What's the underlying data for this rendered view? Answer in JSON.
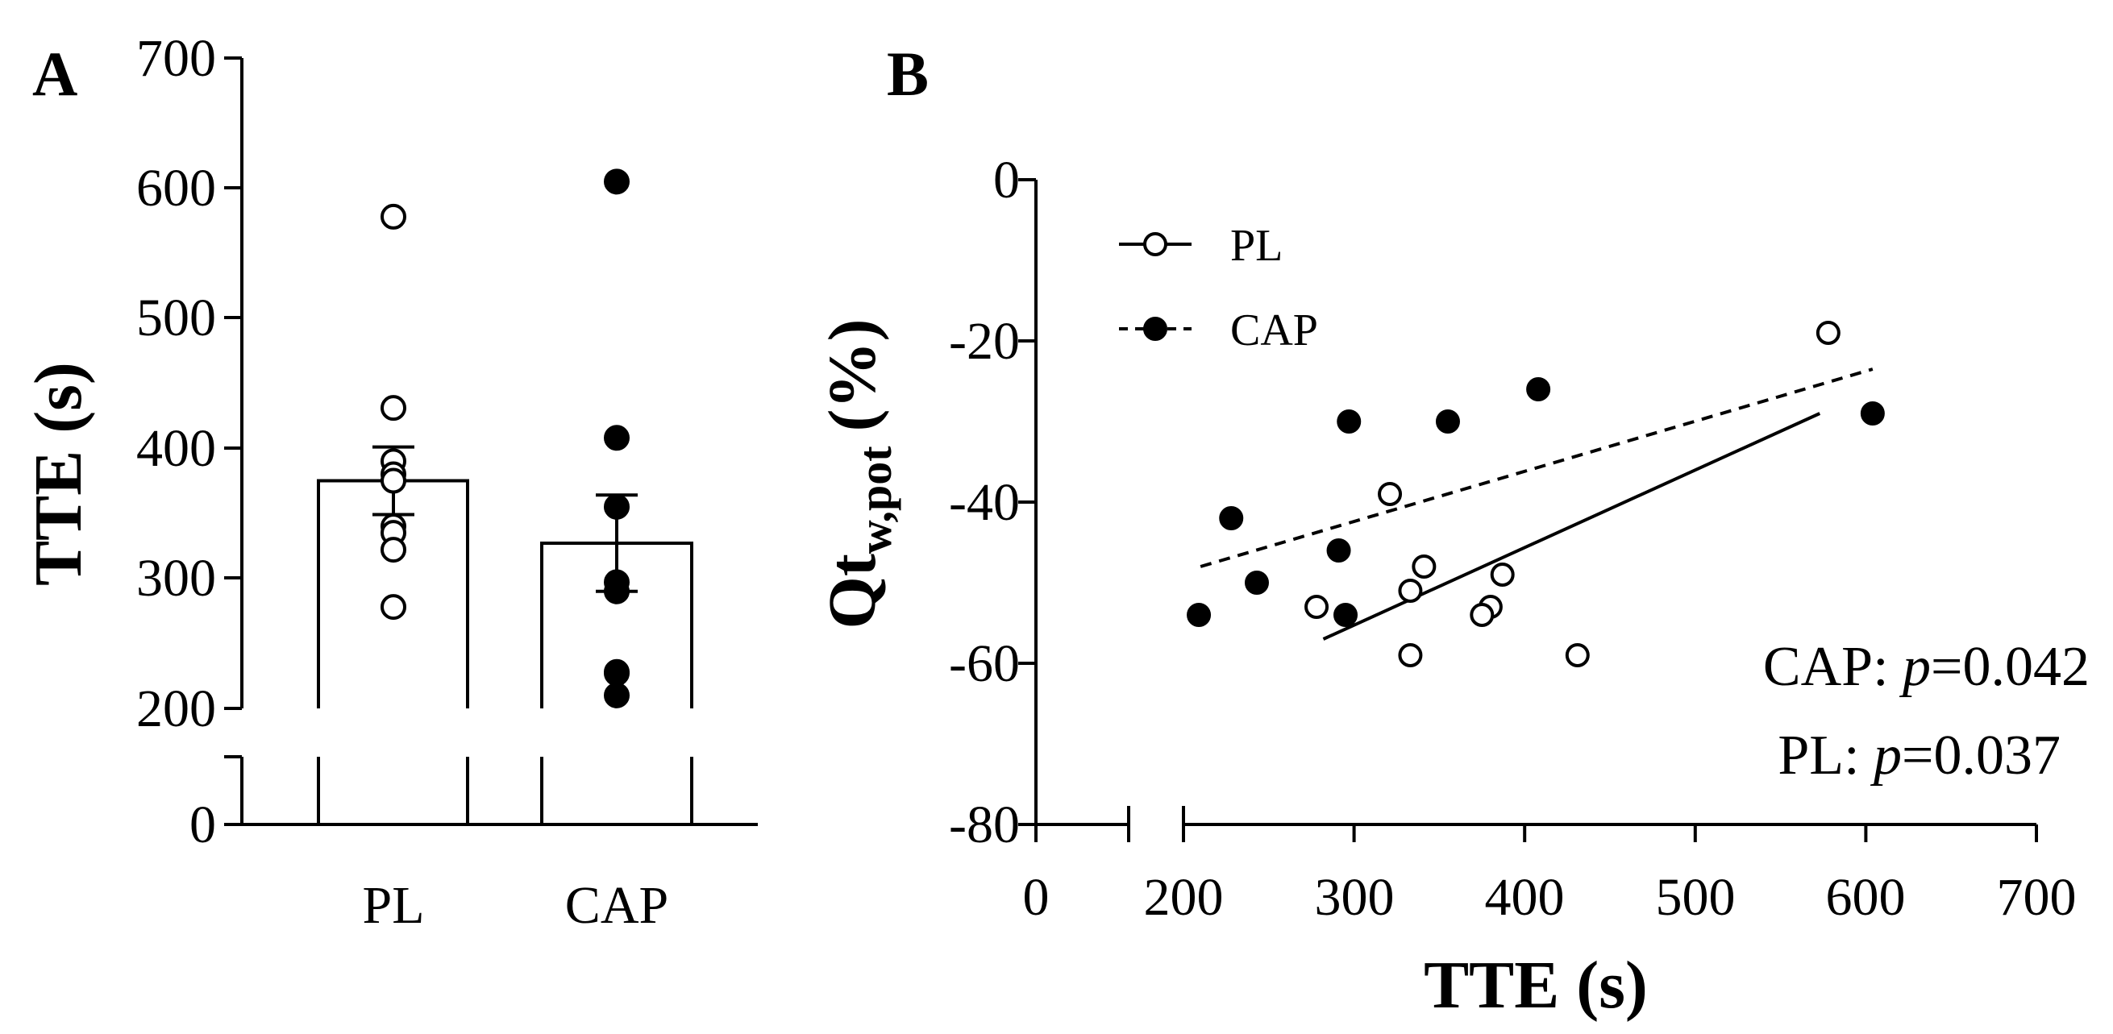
{
  "chart_data": [
    {
      "panel": "A",
      "type": "bar",
      "ylabel": "TTE (s)",
      "categories": [
        "PL",
        "CAP"
      ],
      "values": [
        375,
        327
      ],
      "error_sem": [
        26,
        37
      ],
      "points": {
        "PL": [
          578,
          431,
          390,
          380,
          375,
          340,
          335,
          322,
          278
        ],
        "CAP": [
          605,
          408,
          355,
          297,
          290,
          228,
          227,
          210
        ]
      },
      "ylim_upper": [
        200,
        700
      ],
      "ylim_lower": [
        0,
        50
      ],
      "yticks": [
        "700",
        "600",
        "500",
        "400",
        "300",
        "200",
        "0"
      ],
      "axis_break": true
    },
    {
      "panel": "B",
      "type": "scatter",
      "xlabel": "TTE (s)",
      "ylabel": "Qt",
      "ylabel_sub": "w,pot",
      "ylabel_unit": "(%)",
      "xlim": [
        200,
        700
      ],
      "ylim": [
        -80,
        0
      ],
      "xticks": [
        "0",
        "200",
        "300",
        "400",
        "500",
        "600",
        "700"
      ],
      "yticks": [
        "0",
        "-20",
        "-40",
        "-60",
        "-80"
      ],
      "axis_break": true,
      "series": [
        {
          "name": "PL",
          "marker": "open-circle",
          "line": "solid",
          "x": [
            578,
            321,
            341,
            387,
            380,
            375,
            333,
            431,
            333,
            278
          ],
          "y": [
            -19,
            -39,
            -48,
            -49,
            -53,
            -54,
            -51,
            -59,
            -59,
            -53
          ],
          "fit": [
            [
              282,
              -57
            ],
            [
              573,
              -29
            ]
          ]
        },
        {
          "name": "CAP",
          "marker": "filled-circle",
          "line": "dashed",
          "x": [
            408,
            604,
            297,
            355,
            228,
            291,
            243,
            295,
            209
          ],
          "y": [
            -26,
            -29,
            -30,
            -30,
            -42,
            -46,
            -50,
            -54,
            -54
          ],
          "fit": [
            [
              210,
              -48
            ],
            [
              604,
              -23.5
            ]
          ]
        }
      ],
      "annotations": [
        {
          "label": "CAP: ",
          "italic": "p",
          "value": "=0.042"
        },
        {
          "label": "PL: ",
          "italic": "p",
          "value": "=0.037"
        }
      ]
    }
  ]
}
